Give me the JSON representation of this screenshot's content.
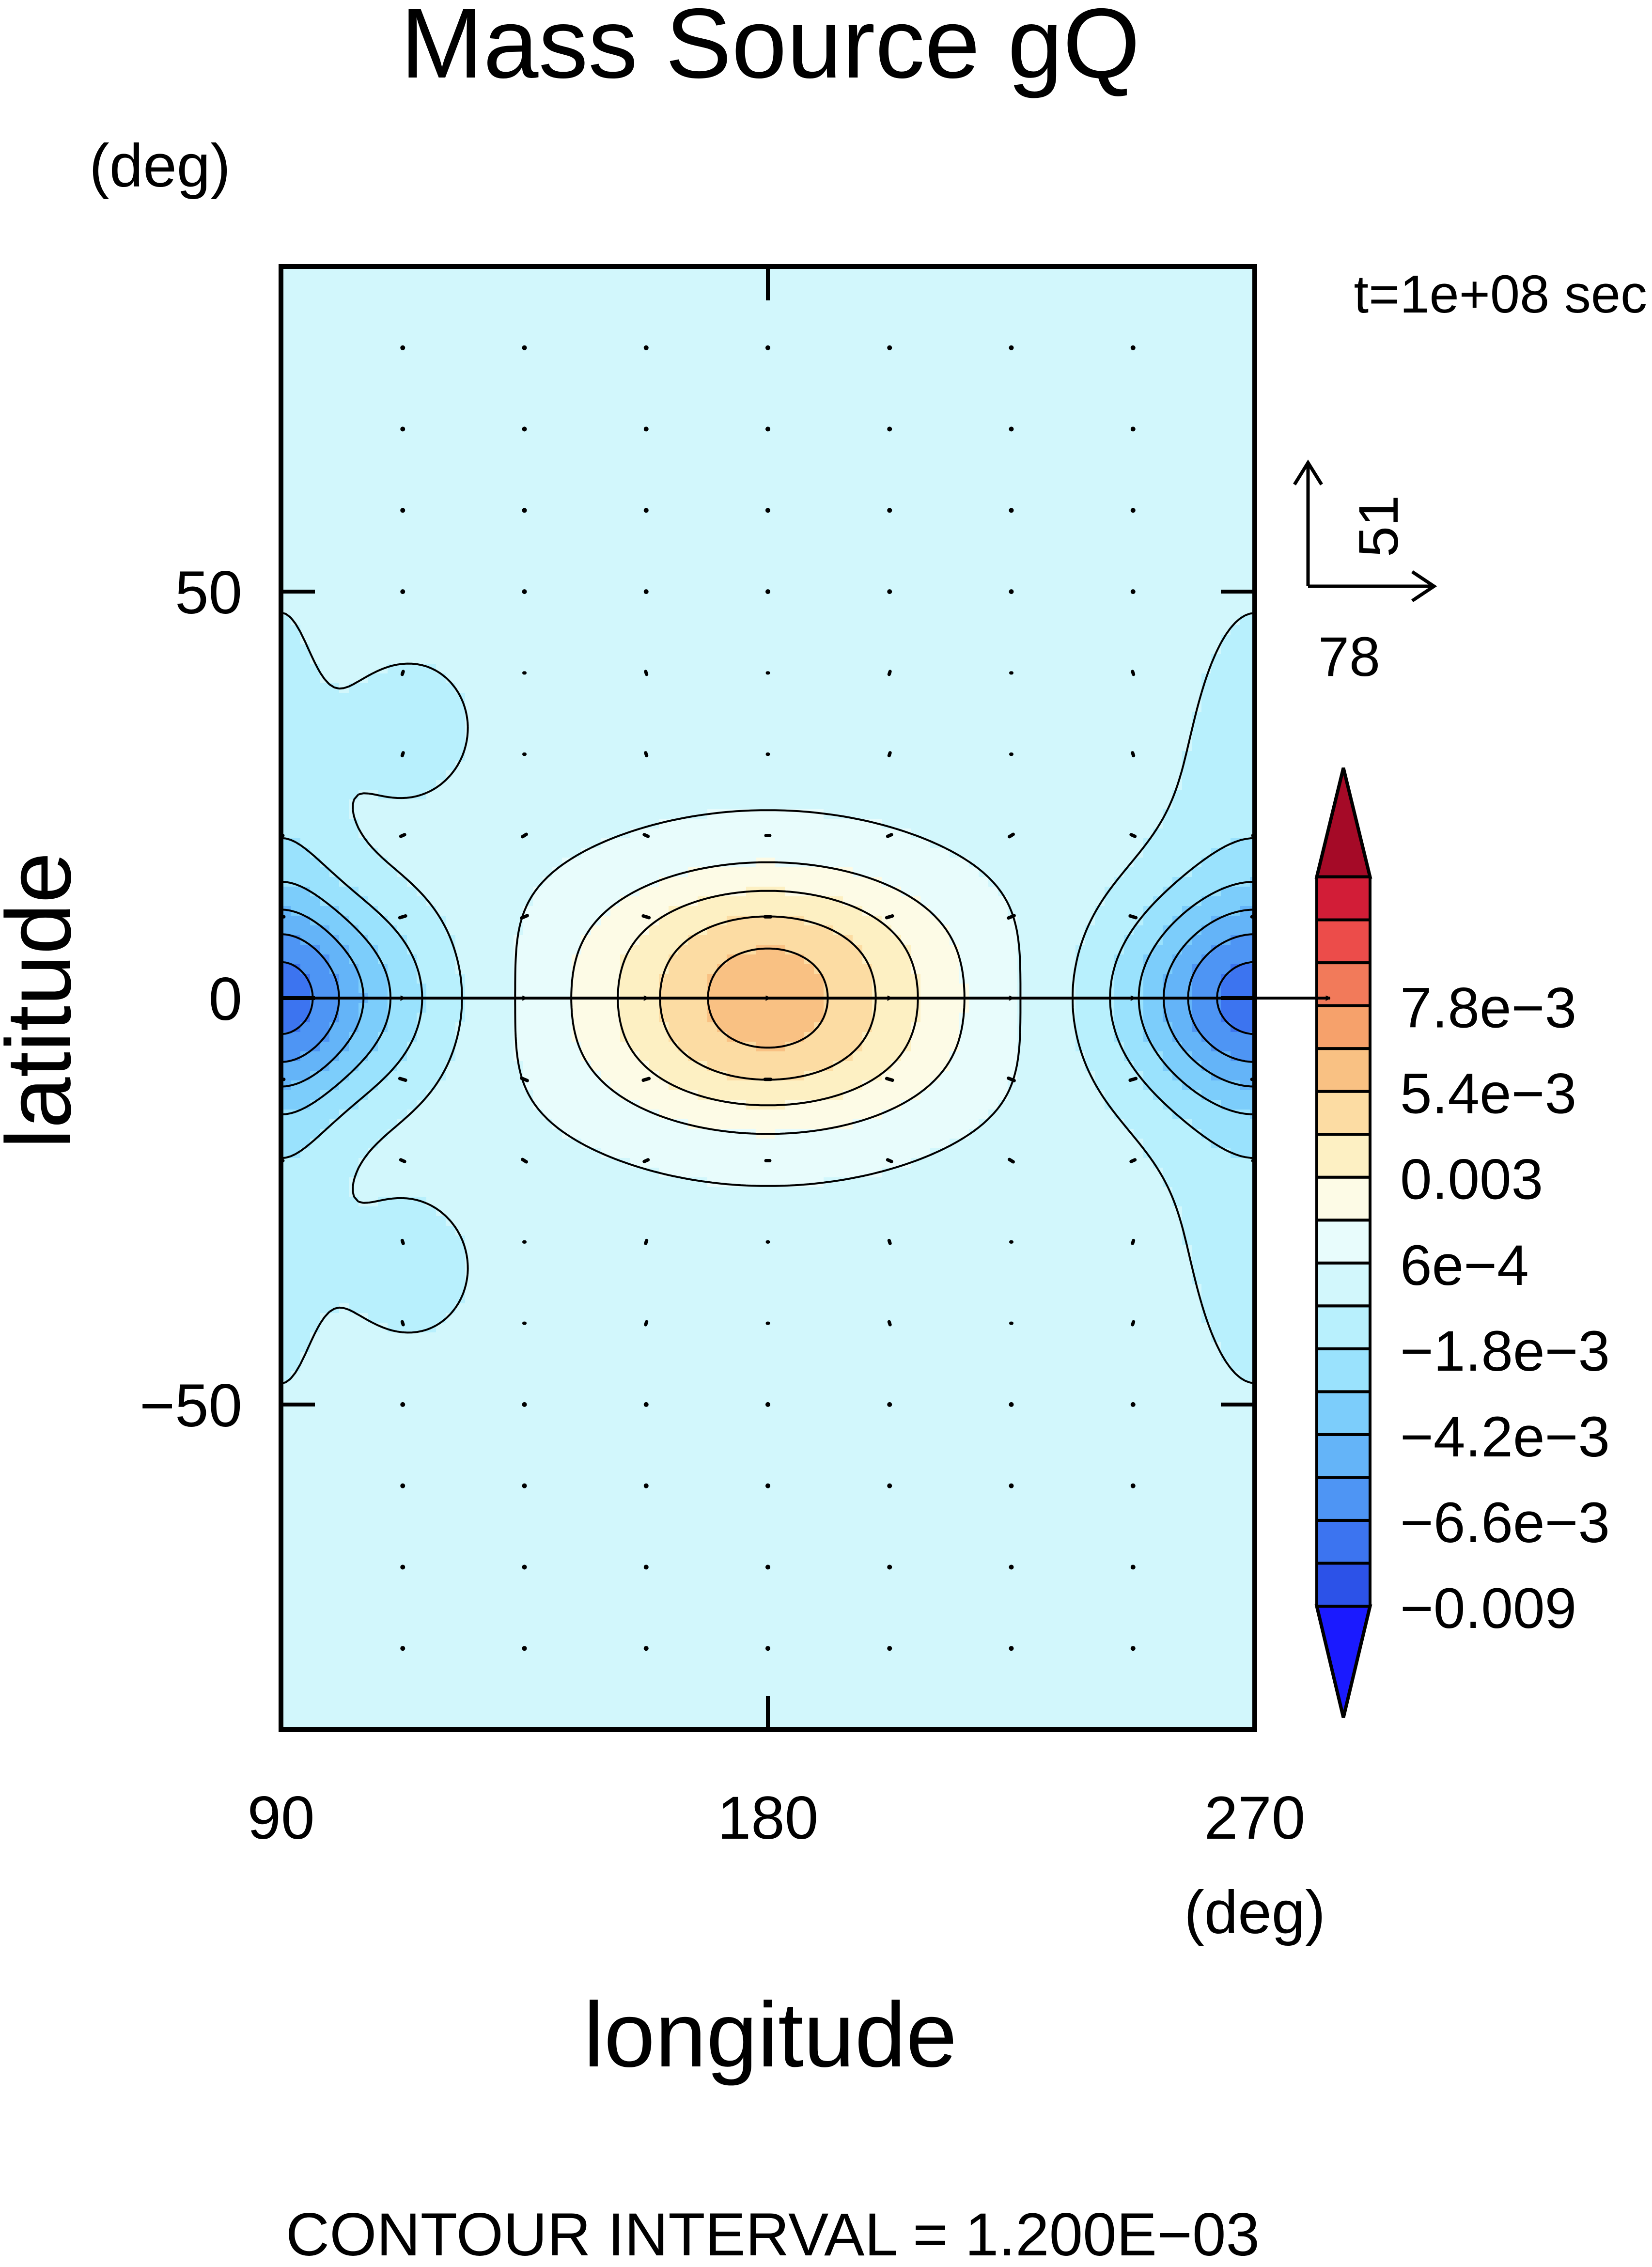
{
  "chart_data": {
    "type": "heatmap",
    "title": "Mass Source gQ",
    "subtitle": "t=1e+08 sec",
    "footer": "CONTOUR INTERVAL = 1.200E-03",
    "xlabel": "longitude",
    "ylabel": "latitude",
    "x_unit": "(deg)",
    "y_unit": "(deg)",
    "xlim": [
      90,
      270
    ],
    "ylim": [
      -90,
      90
    ],
    "x_ticks": [
      {
        "value": 90,
        "label": "90"
      },
      {
        "value": 180,
        "label": "180"
      },
      {
        "value": 270,
        "label": "270"
      }
    ],
    "y_ticks": [
      {
        "value": 50,
        "label": "50"
      },
      {
        "value": 0,
        "label": "0"
      },
      {
        "value": -50,
        "label": "-50"
      }
    ],
    "vector_reference": {
      "x_label": "78",
      "y_label": "51"
    },
    "colorbar": {
      "colors": [
        "#1a1aff",
        "#2c52e8",
        "#3c74f0",
        "#4e95f4",
        "#64b4f8",
        "#7ccdfb",
        "#9ae2fd",
        "#b8f0fd",
        "#d2f7fc",
        "#e8fcfc",
        "#fdfbe6",
        "#fdf0c3",
        "#fcdca3",
        "#f9c183",
        "#f6a16b",
        "#f27a5a",
        "#ec4c4a",
        "#d21d37",
        "#a50a27"
      ],
      "labels": [
        {
          "value": 0.0078,
          "label": "7.8e-3"
        },
        {
          "value": 0.0054,
          "label": "5.4e-3"
        },
        {
          "value": 0.003,
          "label": "0.003"
        },
        {
          "value": 0.0006,
          "label": "6e-4"
        },
        {
          "value": -0.0018,
          "label": "-1.8e-3"
        },
        {
          "value": -0.0042,
          "label": "-4.2e-3"
        },
        {
          "value": -0.0066,
          "label": "-6.6e-3"
        },
        {
          "value": -0.009,
          "label": "-0.009"
        }
      ]
    },
    "contour_interval": 0.0012,
    "field_model": {
      "description_components": "gaussian bumps in lon/lat degrees",
      "components": [
        {
          "lon": 180,
          "lat": 6,
          "amp": 0.0035,
          "sx": 22,
          "sy": 7
        },
        {
          "lon": 180,
          "lat": -6,
          "amp": 0.0035,
          "sx": 22,
          "sy": 7
        },
        {
          "lon": 180,
          "lat": 0,
          "amp": 0.0012,
          "sx": 32,
          "sy": 16
        },
        {
          "lon": 90,
          "lat": 0,
          "amp": -0.0058,
          "sx": 18,
          "sy": 9
        },
        {
          "lon": 270,
          "lat": 0,
          "amp": -0.0058,
          "sx": 18,
          "sy": 9
        },
        {
          "lon": 90,
          "lat": 0,
          "amp": -0.0015,
          "sx": 8,
          "sy": 35
        },
        {
          "lon": 270,
          "lat": 0,
          "amp": -0.0015,
          "sx": 12,
          "sy": 35
        },
        {
          "lon": 114,
          "lat": 33,
          "amp": -0.0015,
          "sx": 8,
          "sy": 6
        },
        {
          "lon": 114,
          "lat": -33,
          "amp": -0.0015,
          "sx": 8,
          "sy": 6
        }
      ]
    },
    "vectors": {
      "lon_step": 22.5,
      "lat_rows": [
        80,
        70,
        60,
        50,
        40,
        30,
        20,
        10,
        0,
        -10,
        -20,
        -30,
        -40,
        -50,
        -60,
        -70,
        -80
      ],
      "equator_speed": 78,
      "ref_speed": 78
    }
  }
}
